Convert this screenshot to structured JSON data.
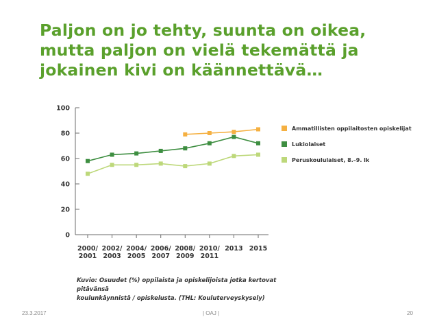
{
  "slide": {
    "title_lines": [
      "Paljon on jo tehty, suunta on oikea,",
      "mutta paljon on vielä tekemättä ja",
      "jokainen kivi on käännettävä…"
    ],
    "caption_lines": [
      "Kuvio: Osuudet (%) oppilaista ja opiskelijoista jotka kertovat pitävänsä",
      "koulunkäynnistä / opiskelusta. (THL: Kouluterveyskysely)"
    ]
  },
  "footer": {
    "date": "23.3.2017",
    "org": "|       OAJ       |",
    "page": "20"
  },
  "chart_data": {
    "type": "line",
    "title": "",
    "xlabel": "",
    "ylabel": "",
    "categories": [
      [
        "2000/",
        "2001"
      ],
      [
        "2002/",
        "2003"
      ],
      [
        "2004/",
        "2005"
      ],
      [
        "2006/",
        "2007"
      ],
      [
        "2008/",
        "2009"
      ],
      [
        "2010/",
        "2011"
      ],
      [
        "2013"
      ],
      [
        "2015"
      ]
    ],
    "ylim": [
      0,
      100
    ],
    "yticks": [
      0,
      20,
      40,
      60,
      80,
      100
    ],
    "grid": false,
    "legend_position": "right",
    "series": [
      {
        "name": "Ammatillisten oppilaitosten opiskelijat",
        "color": "#f5b041",
        "values": [
          null,
          null,
          null,
          null,
          79,
          80,
          81,
          83
        ]
      },
      {
        "name": "Lukiolaiset",
        "color": "#3e8e41",
        "values": [
          58,
          63,
          64,
          66,
          68,
          72,
          77,
          72
        ]
      },
      {
        "name": "Peruskoululaiset, 8.–9. lk",
        "color": "#bdd87a",
        "values": [
          48,
          55,
          55,
          56,
          54,
          56,
          62,
          63
        ]
      }
    ]
  }
}
